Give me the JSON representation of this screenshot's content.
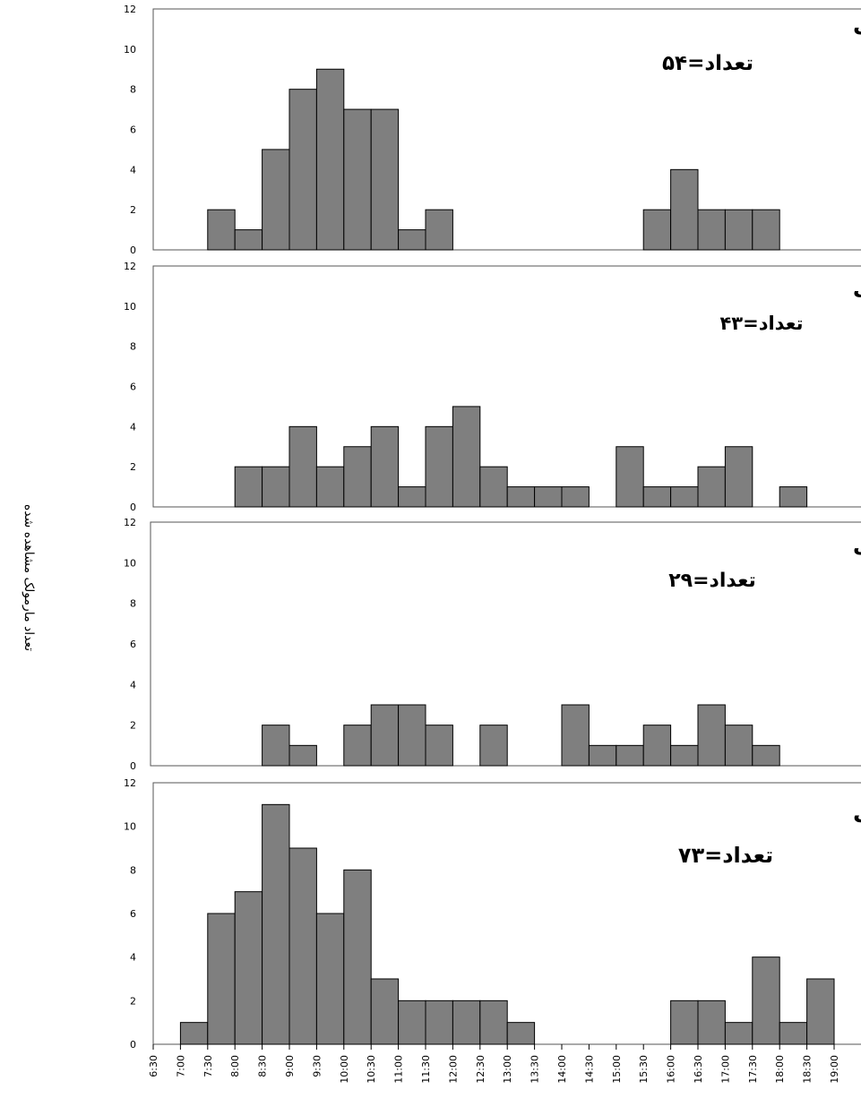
{
  "chart_data": {
    "type": "bar",
    "categories": [
      "6:30",
      "7:00",
      "7:30",
      "8:00",
      "8:30",
      "9:00",
      "9:30",
      "10:00",
      "10:30",
      "11:00",
      "11:30",
      "12:00",
      "12:30",
      "13:00",
      "13:30",
      "14:00",
      "14:30",
      "15:00",
      "15:30",
      "16:00",
      "16:30",
      "17:00",
      "17:30",
      "18:00",
      "18:30",
      "19:00"
    ],
    "y_axis_label": "تعداد مارمولک مشاهده شده",
    "y_ticks": [
      "0",
      "2",
      "4",
      "6",
      "8",
      "10",
      "12"
    ],
    "ylim": [
      0,
      12
    ],
    "grid": false,
    "bar_color": "#7f7f7f",
    "panels": [
      {
        "title": "آگامای پولک درشت صخره ای",
        "count_label": "تعداد=۵۴",
        "values": [
          0,
          0,
          2,
          1,
          5,
          8,
          9,
          7,
          7,
          1,
          2,
          0,
          0,
          0,
          0,
          0,
          0,
          0,
          2,
          4,
          2,
          2,
          2,
          0,
          0
        ]
      },
      {
        "title": "آگامای چابک",
        "count_label": "تعداد=۴۳",
        "values": [
          0,
          0,
          0,
          2,
          2,
          4,
          2,
          3,
          4,
          1,
          4,
          5,
          2,
          1,
          1,
          1,
          0,
          3,
          1,
          1,
          2,
          3,
          0,
          1,
          0
        ]
      },
      {
        "title": "آگامای سروزغی خاکستری",
        "count_label": "تعداد=۲۹",
        "values": [
          0,
          0,
          0,
          0,
          2,
          1,
          0,
          2,
          3,
          3,
          2,
          0,
          2,
          0,
          0,
          3,
          1,
          1,
          2,
          1,
          3,
          2,
          1,
          0,
          0
        ]
      },
      {
        "title": "مسالینای دم دراز بیابانی",
        "count_label": "تعداد=۷۳",
        "values": [
          0,
          1,
          6,
          7,
          11,
          9,
          6,
          8,
          3,
          2,
          2,
          2,
          2,
          1,
          0,
          0,
          0,
          0,
          0,
          2,
          2,
          1,
          4,
          1,
          3
        ]
      }
    ]
  }
}
